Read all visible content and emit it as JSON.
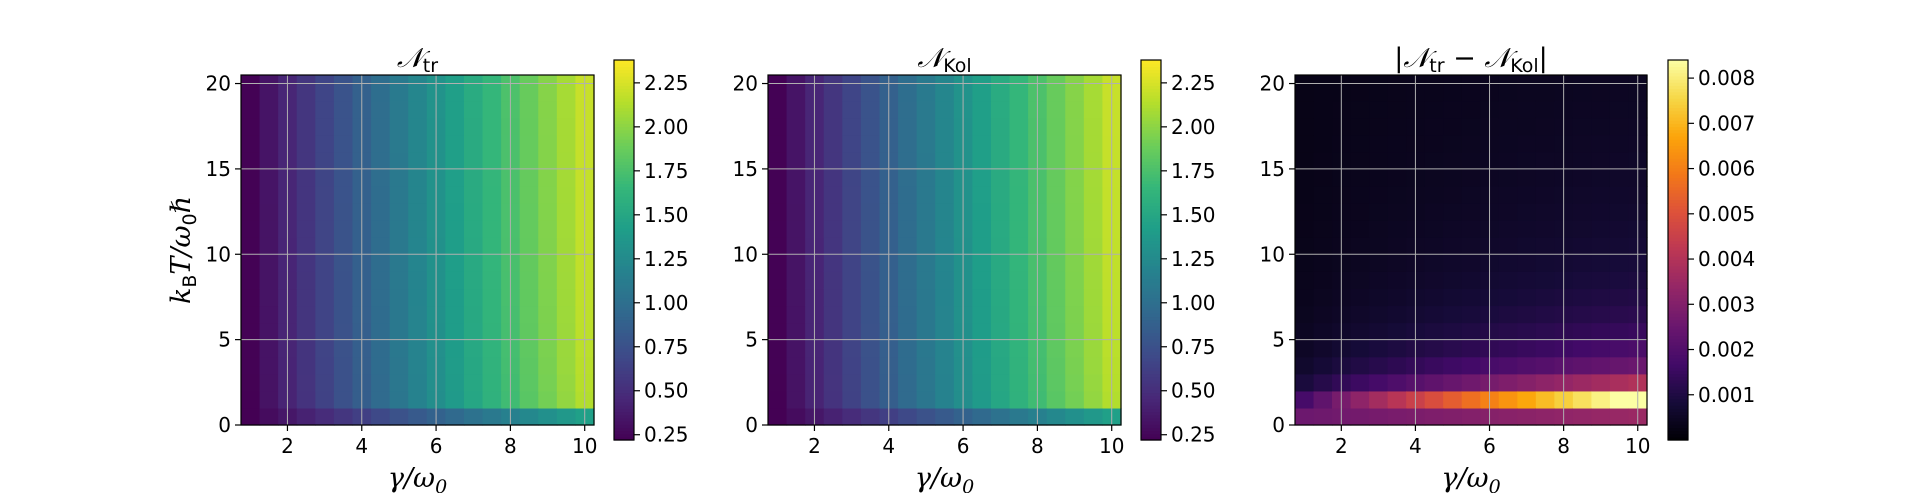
{
  "chart_data": [
    {
      "type": "heatmap",
      "title": {
        "main": "𝒩",
        "sub": "tr",
        "prefix": "",
        "suffix": ""
      },
      "xlabel": {
        "main": "γ/ω",
        "sub": "0"
      },
      "ylabel": {
        "a": "k",
        "a_sub": "B",
        "b": "T/ω",
        "b_sub": "0",
        "c": "ℏ"
      },
      "x_ticks": [
        2,
        4,
        6,
        8,
        10
      ],
      "y_ticks": [
        0,
        5,
        10,
        15,
        20
      ],
      "xlim": [
        0.75,
        10.25
      ],
      "ylim": [
        0,
        20.5
      ],
      "grid": true,
      "colormap": "viridis",
      "clim": [
        0.22,
        2.38
      ],
      "colorbar_ticks": [
        "0.25",
        "0.50",
        "0.75",
        "1.00",
        "1.25",
        "1.50",
        "1.75",
        "2.00",
        "2.25"
      ],
      "colorbar_tick_values": [
        0.25,
        0.5,
        0.75,
        1.0,
        1.25,
        1.5,
        1.75,
        2.0,
        2.25
      ],
      "grid_x_cols": 19,
      "grid_y_rows": 20,
      "value_model": "N(gamma,T) ≈ 0.22 + 0.21*(gamma-1) + 0.09*(gamma/10)*log1p(T)/log(21) ; lowest temperature row ≈ 0.22 + 0.135*(gamma-1)"
    },
    {
      "type": "heatmap",
      "title": {
        "main": "𝒩",
        "sub": "Kol",
        "prefix": "",
        "suffix": ""
      },
      "xlabel": {
        "main": "γ/ω",
        "sub": "0"
      },
      "ylabel": null,
      "x_ticks": [
        2,
        4,
        6,
        8,
        10
      ],
      "y_ticks": [
        0,
        5,
        10,
        15,
        20
      ],
      "xlim": [
        0.75,
        10.25
      ],
      "ylim": [
        0,
        20.5
      ],
      "grid": true,
      "colormap": "viridis",
      "clim": [
        0.22,
        2.38
      ],
      "colorbar_ticks": [
        "0.25",
        "0.50",
        "0.75",
        "1.00",
        "1.25",
        "1.50",
        "1.75",
        "2.00",
        "2.25"
      ],
      "colorbar_tick_values": [
        0.25,
        0.5,
        0.75,
        1.0,
        1.25,
        1.5,
        1.75,
        2.0,
        2.25
      ],
      "grid_x_cols": 19,
      "grid_y_rows": 20,
      "value_model": "same as left panel"
    },
    {
      "type": "heatmap",
      "title": {
        "main": "𝒩",
        "sub": "tr",
        "mid": " − ",
        "main2": "𝒩",
        "sub2": "Kol",
        "prefix": "|",
        "suffix": "|"
      },
      "xlabel": {
        "main": "γ/ω",
        "sub": "0"
      },
      "ylabel": null,
      "x_ticks": [
        2,
        4,
        6,
        8,
        10
      ],
      "y_ticks": [
        0,
        5,
        10,
        15,
        20
      ],
      "xlim": [
        0.75,
        10.25
      ],
      "ylim": [
        0,
        20.5
      ],
      "grid": true,
      "colormap": "inferno",
      "clim": [
        0.0,
        0.0084
      ],
      "colorbar_ticks": [
        "0.001",
        "0.002",
        "0.003",
        "0.004",
        "0.005",
        "0.006",
        "0.007",
        "0.008"
      ],
      "colorbar_tick_values": [
        0.001,
        0.002,
        0.003,
        0.004,
        0.005,
        0.006,
        0.007,
        0.008
      ],
      "grid_x_cols": 19,
      "grid_y_rows": 20,
      "value_model": "difference peaks ≈0.0084 at gamma≈10, T≈1; decays with T; lowest row ≈0.0035"
    }
  ]
}
